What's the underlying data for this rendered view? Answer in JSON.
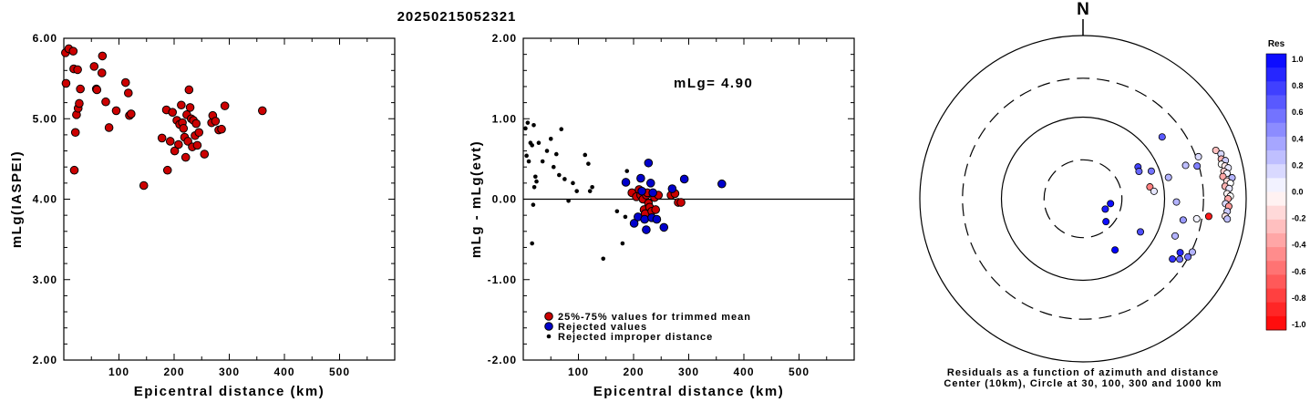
{
  "title": "20250215052321",
  "chart_data": [
    {
      "type": "scatter",
      "xlabel": "Epicentral distance (km)",
      "ylabel": "mLg(IASPEI)",
      "xlim": [
        0,
        600
      ],
      "ylim": [
        2.0,
        6.0
      ],
      "xticks": [
        "100",
        "200",
        "300",
        "400",
        "500"
      ],
      "yticks": [
        "2.00",
        "3.00",
        "4.00",
        "5.00",
        "6.00"
      ],
      "series": [
        {
          "color": "#cc0000",
          "points": [
            [
              3,
              5.82
            ],
            [
              9,
              5.87
            ],
            [
              4,
              5.44
            ],
            [
              17,
              5.84
            ],
            [
              18,
              5.62
            ],
            [
              25,
              5.61
            ],
            [
              23,
              5.05
            ],
            [
              26,
              5.13
            ],
            [
              28,
              5.19
            ],
            [
              30,
              5.37
            ],
            [
              55,
              5.65
            ],
            [
              59,
              5.37
            ],
            [
              60,
              5.36
            ],
            [
              70,
              5.78
            ],
            [
              69,
              5.57
            ],
            [
              76,
              5.21
            ],
            [
              82,
              4.89
            ],
            [
              95,
              5.1
            ],
            [
              112,
              5.45
            ],
            [
              117,
              5.32
            ],
            [
              119,
              5.04
            ],
            [
              122,
              5.06
            ],
            [
              21,
              4.83
            ],
            [
              19,
              4.36
            ],
            [
              145,
              4.17
            ],
            [
              178,
              4.76
            ],
            [
              186,
              5.11
            ],
            [
              188,
              4.36
            ],
            [
              193,
              4.72
            ],
            [
              197,
              5.08
            ],
            [
              201,
              4.6
            ],
            [
              205,
              4.98
            ],
            [
              208,
              4.68
            ],
            [
              210,
              4.93
            ],
            [
              213,
              5.17
            ],
            [
              215,
              4.95
            ],
            [
              217,
              4.88
            ],
            [
              219,
              4.77
            ],
            [
              221,
              4.52
            ],
            [
              223,
              5.05
            ],
            [
              225,
              4.72
            ],
            [
              227,
              5.36
            ],
            [
              229,
              5.14
            ],
            [
              231,
              5.0
            ],
            [
              233,
              4.65
            ],
            [
              235,
              4.98
            ],
            [
              238,
              4.79
            ],
            [
              240,
              4.94
            ],
            [
              242,
              4.67
            ],
            [
              245,
              4.83
            ],
            [
              255,
              4.56
            ],
            [
              268,
              4.95
            ],
            [
              270,
              5.04
            ],
            [
              275,
              4.97
            ],
            [
              281,
              4.86
            ],
            [
              286,
              4.87
            ],
            [
              292,
              5.16
            ],
            [
              360,
              5.1
            ]
          ]
        }
      ]
    },
    {
      "type": "scatter",
      "xlabel": "Epicentral distance (km)",
      "ylabel": "mLg - mLg(evt)",
      "xlim": [
        0,
        600
      ],
      "ylim": [
        -2.0,
        2.0
      ],
      "xticks": [
        "100",
        "200",
        "300",
        "400",
        "500"
      ],
      "yticks": [
        "-2.00",
        "-1.00",
        "0.00",
        "1.00",
        "2.00"
      ],
      "annotation": "mLg= 4.90",
      "legend": {
        "placement": "lower-left",
        "entries": [
          "25%-75% values for trimmed mean",
          "Rejected values",
          "Rejected improper distance"
        ]
      },
      "series": [
        {
          "name": "25%-75% values for trimmed mean",
          "color": "#cc0000",
          "points": [
            [
              197,
              0.08
            ],
            [
              205,
              0.03
            ],
            [
              210,
              0.12
            ],
            [
              213,
              0.05
            ],
            [
              217,
              0.0
            ],
            [
              219,
              -0.13
            ],
            [
              221,
              -0.18
            ],
            [
              223,
              0.05
            ],
            [
              225,
              0.08
            ],
            [
              227,
              -0.05
            ],
            [
              229,
              -0.1
            ],
            [
              233,
              -0.15
            ],
            [
              238,
              0.02
            ],
            [
              240,
              -0.13
            ],
            [
              245,
              0.05
            ],
            [
              268,
              0.05
            ],
            [
              275,
              0.07
            ],
            [
              281,
              -0.04
            ],
            [
              286,
              -0.04
            ]
          ]
        },
        {
          "name": "Rejected values",
          "color": "#0000cc",
          "points": [
            [
              186,
              0.21
            ],
            [
              201,
              -0.3
            ],
            [
              208,
              -0.22
            ],
            [
              213,
              0.26
            ],
            [
              215,
              0.1
            ],
            [
              220,
              -0.25
            ],
            [
              223,
              -0.38
            ],
            [
              227,
              0.45
            ],
            [
              231,
              0.2
            ],
            [
              233,
              -0.23
            ],
            [
              235,
              0.08
            ],
            [
              242,
              -0.25
            ],
            [
              255,
              -0.35
            ],
            [
              270,
              0.13
            ],
            [
              292,
              0.25
            ],
            [
              360,
              0.19
            ]
          ]
        },
        {
          "name": "Rejected improper distance",
          "color": "#000000",
          "points": [
            [
              4,
              0.88
            ],
            [
              8,
              0.95
            ],
            [
              13,
              0.7
            ],
            [
              16,
              0.67
            ],
            [
              19,
              0.92
            ],
            [
              6,
              0.54
            ],
            [
              10,
              0.47
            ],
            [
              20,
              0.15
            ],
            [
              22,
              0.28
            ],
            [
              24,
              0.22
            ],
            [
              18,
              -0.07
            ],
            [
              16,
              -0.55
            ],
            [
              28,
              0.7
            ],
            [
              35,
              0.47
            ],
            [
              43,
              0.6
            ],
            [
              50,
              0.75
            ],
            [
              55,
              0.4
            ],
            [
              60,
              0.56
            ],
            [
              65,
              0.3
            ],
            [
              69,
              0.87
            ],
            [
              75,
              0.25
            ],
            [
              82,
              -0.02
            ],
            [
              90,
              0.2
            ],
            [
              97,
              0.1
            ],
            [
              112,
              0.55
            ],
            [
              118,
              0.44
            ],
            [
              121,
              0.1
            ],
            [
              125,
              0.15
            ],
            [
              145,
              -0.74
            ],
            [
              170,
              -0.15
            ],
            [
              180,
              -0.55
            ],
            [
              185,
              -0.22
            ],
            [
              188,
              0.35
            ]
          ]
        }
      ]
    }
  ],
  "polar": {
    "north_label": "N",
    "caption_line1": "Residuals as a function of azimuth and distance",
    "caption_line2": "Center (10km), Circle at 30, 100, 300 and 1000 km",
    "colorbar_title": "Res",
    "colorbar_ticks": [
      "1.0",
      "0.8",
      "0.6",
      "0.4",
      "0.2",
      "0.0",
      "-0.2",
      "-0.4",
      "-0.6",
      "-0.8",
      "-1.0"
    ],
    "scale_colors": {
      "positive": "#0000ff",
      "zero": "#ffffff",
      "negative": "#ff0000"
    },
    "stations": [
      {
        "azimuth": 100,
        "distance": 22,
        "residual": 0.95
      },
      {
        "azimuth": 115,
        "distance": 20,
        "residual": 0.9
      },
      {
        "azimuth": 135,
        "distance": 25,
        "residual": 0.95
      },
      {
        "azimuth": 120,
        "distance": 65,
        "residual": 0.7
      },
      {
        "azimuth": 148,
        "distance": 55,
        "residual": 1.0
      },
      {
        "azimuth": 60,
        "distance": 60,
        "residual": 0.75
      },
      {
        "azimuth": 64,
        "distance": 58,
        "residual": 0.6
      },
      {
        "azimuth": 80,
        "distance": 68,
        "residual": -0.5
      },
      {
        "azimuth": 84,
        "distance": 75,
        "residual": 0.1
      },
      {
        "azimuth": 68,
        "distance": 80,
        "residual": 0.55
      },
      {
        "azimuth": 76,
        "distance": 120,
        "residual": 0.3
      },
      {
        "azimuth": 92,
        "distance": 140,
        "residual": 0.3
      },
      {
        "azimuth": 72,
        "distance": 210,
        "residual": 0.25
      },
      {
        "azimuth": 52,
        "distance": 170,
        "residual": 0.65
      },
      {
        "azimuth": 102,
        "distance": 180,
        "residual": 0.4
      },
      {
        "azimuth": 112,
        "distance": 165,
        "residual": 0.3
      },
      {
        "azimuth": 100,
        "distance": 260,
        "residual": 0.05
      },
      {
        "azimuth": 119,
        "distance": 230,
        "residual": 0.85
      },
      {
        "azimuth": 124,
        "distance": 210,
        "residual": 0.8
      },
      {
        "azimuth": 122,
        "distance": 250,
        "residual": 0.6
      },
      {
        "azimuth": 119,
        "distance": 295,
        "residual": 0.55
      },
      {
        "azimuth": 116,
        "distance": 310,
        "residual": 0.3
      },
      {
        "azimuth": 98,
        "distance": 360,
        "residual": -0.9
      },
      {
        "azimuth": 70,
        "distance": 320,
        "residual": 0.15
      },
      {
        "azimuth": 74,
        "distance": 285,
        "residual": 0.5
      },
      {
        "azimuth": 70,
        "distance": 540,
        "residual": -0.25
      },
      {
        "azimuth": 72,
        "distance": 600,
        "residual": 0.15
      },
      {
        "azimuth": 74,
        "distance": 580,
        "residual": -0.3
      },
      {
        "azimuth": 75,
        "distance": 640,
        "residual": 0.2
      },
      {
        "azimuth": 76,
        "distance": 560,
        "residual": 0.0
      },
      {
        "azimuth": 77,
        "distance": 610,
        "residual": -0.1
      },
      {
        "azimuth": 78,
        "distance": 660,
        "residual": 0.1
      },
      {
        "azimuth": 79,
        "distance": 575,
        "residual": -0.2
      },
      {
        "azimuth": 80,
        "distance": 620,
        "residual": 0.05
      },
      {
        "azimuth": 81,
        "distance": 545,
        "residual": -0.35
      },
      {
        "azimuth": 82,
        "distance": 700,
        "residual": 0.3
      },
      {
        "azimuth": 83,
        "distance": 600,
        "residual": -0.15
      },
      {
        "azimuth": 84,
        "distance": 655,
        "residual": 0.0
      },
      {
        "azimuth": 85,
        "distance": 560,
        "residual": -0.3
      },
      {
        "azimuth": 86,
        "distance": 625,
        "residual": 0.1
      },
      {
        "azimuth": 88,
        "distance": 585,
        "residual": -0.05
      },
      {
        "azimuth": 89,
        "distance": 640,
        "residual": 0.0
      },
      {
        "azimuth": 90,
        "distance": 600,
        "residual": -0.35
      },
      {
        "azimuth": 92,
        "distance": 560,
        "residual": 0.15
      },
      {
        "azimuth": 93,
        "distance": 615,
        "residual": -0.4
      },
      {
        "azimuth": 95,
        "distance": 595,
        "residual": 0.2
      },
      {
        "azimuth": 97,
        "distance": 570,
        "residual": -0.1
      },
      {
        "azimuth": 98,
        "distance": 610,
        "residual": 0.25
      }
    ]
  }
}
